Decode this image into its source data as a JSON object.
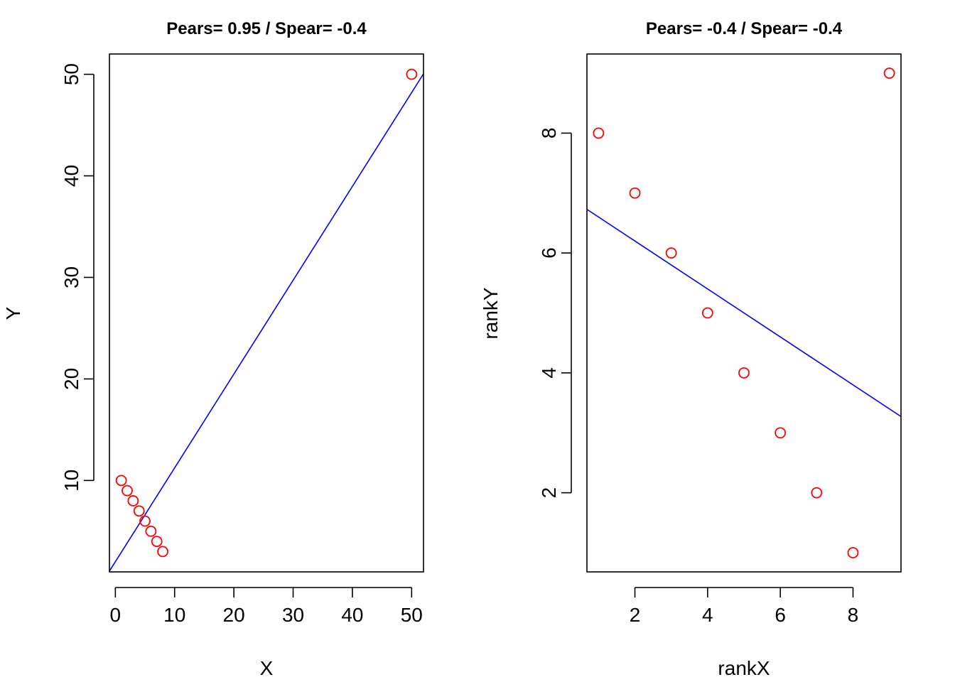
{
  "chart_data": [
    {
      "type": "scatter",
      "title": "Pears=  0.95  / Spear= -0.4",
      "xlabel": "X",
      "ylabel": "Y",
      "xlim": [
        -1,
        52
      ],
      "ylim": [
        1,
        52
      ],
      "xticks": [
        0,
        10,
        20,
        30,
        40,
        50
      ],
      "yticks": [
        10,
        20,
        30,
        40,
        50
      ],
      "points": {
        "x": [
          1,
          2,
          3,
          4,
          5,
          6,
          7,
          8,
          50
        ],
        "y": [
          10,
          9,
          8,
          7,
          6,
          5,
          4,
          3,
          50
        ]
      },
      "fit_line": {
        "intercept": 2.0,
        "slope": 0.924
      },
      "point_color": "#ff0000",
      "line_color": "#0000ff",
      "grid": false
    },
    {
      "type": "scatter",
      "title": "Pears= -0.4  / Spear= -0.4",
      "xlabel": "rankX",
      "ylabel": "rankY",
      "xlim": [
        0.68,
        9.32
      ],
      "ylim": [
        0.68,
        9.32
      ],
      "xticks": [
        2,
        4,
        6,
        8
      ],
      "yticks": [
        2,
        4,
        6,
        8
      ],
      "points": {
        "x": [
          1,
          2,
          3,
          4,
          5,
          6,
          7,
          8,
          9
        ],
        "y": [
          8,
          7,
          6,
          5,
          4,
          3,
          2,
          1,
          9
        ]
      },
      "fit_line": {
        "intercept": 7.0,
        "slope": -0.4
      },
      "point_color": "#ff0000",
      "line_color": "#0000ff",
      "grid": false
    }
  ]
}
